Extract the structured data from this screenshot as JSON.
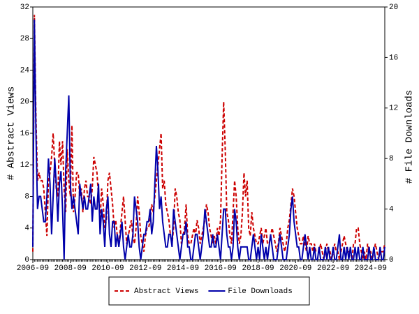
{
  "chart_data": {
    "type": "line",
    "y_label": "# Abstract Views",
    "y2_label": "# File Downloads",
    "categories": [
      "2006-09",
      null,
      null,
      null,
      null,
      null,
      null,
      null,
      null,
      null,
      null,
      null,
      null,
      null,
      null,
      null,
      null,
      null,
      null,
      null,
      null,
      null,
      null,
      null,
      "2008-09",
      null,
      null,
      null,
      null,
      null,
      null,
      null,
      null,
      null,
      null,
      null,
      null,
      null,
      null,
      null,
      null,
      null,
      null,
      null,
      null,
      null,
      null,
      null,
      "2010-09",
      null,
      null,
      null,
      null,
      null,
      null,
      null,
      null,
      null,
      null,
      null,
      null,
      null,
      null,
      null,
      null,
      null,
      null,
      null,
      null,
      null,
      null,
      null,
      "2012-09",
      null,
      null,
      null,
      null,
      null,
      null,
      null,
      null,
      null,
      null,
      null,
      null,
      null,
      null,
      null,
      null,
      null,
      null,
      null,
      null,
      null,
      null,
      null,
      "2014-09",
      null,
      null,
      null,
      null,
      null,
      null,
      null,
      null,
      null,
      null,
      null,
      null,
      null,
      null,
      null,
      null,
      null,
      null,
      null,
      null,
      null,
      null,
      null,
      "2016-09",
      null,
      null,
      null,
      null,
      null,
      null,
      null,
      null,
      null,
      null,
      null,
      null,
      null,
      null,
      null,
      null,
      null,
      null,
      null,
      null,
      null,
      null,
      null,
      "2018-09",
      null,
      null,
      null,
      null,
      null,
      null,
      null,
      null,
      null,
      null,
      null,
      null,
      null,
      null,
      null,
      null,
      null,
      null,
      null,
      null,
      null,
      null,
      null,
      "2020-09",
      null,
      null,
      null,
      null,
      null,
      null,
      null,
      null,
      null,
      null,
      null,
      null,
      null,
      null,
      null,
      null,
      null,
      null,
      null,
      null,
      null,
      null,
      null,
      "2022-09",
      null,
      null,
      null,
      null,
      null,
      null,
      null,
      null,
      null,
      null,
      null,
      null,
      null,
      null,
      null,
      null,
      null,
      null,
      null,
      null,
      null,
      null,
      null,
      "2024-09",
      null,
      null,
      null,
      null,
      null,
      null,
      null,
      null,
      null
    ],
    "series": [
      {
        "name": "Abstract Views",
        "color": "#cc0000",
        "line_style": "dashed",
        "values": [
          1,
          31,
          18,
          10,
          11,
          10,
          10,
          9,
          6,
          3,
          10,
          11,
          13,
          16,
          12,
          9,
          8,
          15,
          12,
          15,
          9,
          6,
          14,
          10,
          8,
          17,
          6,
          8,
          11,
          11,
          8,
          9,
          6,
          9,
          10,
          8,
          8,
          7,
          9,
          13,
          12,
          11,
          8,
          5,
          9,
          7,
          4,
          5,
          10,
          11,
          9,
          7,
          4,
          5,
          3,
          2,
          4,
          6,
          8,
          5,
          2,
          3,
          4,
          5,
          3,
          2,
          4,
          8,
          6,
          3,
          2,
          1,
          3,
          4,
          4,
          5,
          7,
          6,
          8,
          10,
          12,
          14,
          16,
          9,
          10,
          7,
          6,
          5,
          3,
          2,
          4,
          9,
          8,
          6,
          5,
          2,
          3,
          4,
          7,
          3,
          2,
          2,
          3,
          4,
          3,
          5,
          4,
          2,
          3,
          4,
          5,
          7,
          6,
          4,
          3,
          2,
          3,
          2,
          4,
          3,
          5,
          13,
          20,
          14,
          6,
          5,
          3,
          2,
          6,
          10,
          8,
          4,
          2,
          3,
          6,
          11,
          8,
          10,
          4,
          3,
          6,
          4,
          3,
          2,
          2,
          3,
          4,
          2,
          3,
          4,
          2,
          2,
          3,
          4,
          3,
          2,
          1,
          2,
          4,
          3,
          2,
          1,
          2,
          4,
          5,
          7,
          9,
          8,
          6,
          4,
          3,
          2,
          2,
          3,
          2,
          1,
          3,
          2,
          2,
          1,
          2,
          1,
          1,
          1,
          2,
          1,
          0,
          1,
          2,
          1,
          1,
          0,
          1,
          2,
          1,
          1,
          0,
          1,
          2,
          3,
          2,
          1,
          1,
          1,
          0,
          2,
          2,
          4,
          4,
          2,
          1,
          0,
          1,
          0,
          2,
          1,
          1,
          0,
          1,
          2,
          1,
          0,
          1,
          1,
          1,
          2
        ]
      },
      {
        "name": "File Downloads",
        "color": "#0000aa",
        "line_style": "solid",
        "axis": "y2",
        "values": [
          1,
          19,
          10,
          4,
          5,
          5,
          4,
          3,
          3,
          5,
          8,
          6,
          2,
          5,
          8,
          6,
          3,
          6,
          7,
          4,
          0,
          7,
          10,
          13,
          6,
          4,
          5,
          4,
          3,
          2,
          6,
          5,
          4,
          5,
          4,
          4,
          5,
          6,
          3,
          5,
          4,
          4,
          6,
          2,
          4,
          3,
          1,
          4,
          5,
          2,
          1,
          3,
          3,
          1,
          2,
          1,
          2,
          3,
          1,
          0,
          1,
          2,
          1,
          1,
          2,
          5,
          4,
          3,
          1,
          0,
          1,
          2,
          2,
          3,
          3,
          4,
          2,
          3,
          6,
          9,
          7,
          4,
          5,
          3,
          2,
          1,
          1,
          2,
          2,
          1,
          4,
          3,
          2,
          1,
          0,
          1,
          2,
          2,
          3,
          1,
          1,
          0,
          0,
          1,
          2,
          2,
          1,
          0,
          1,
          2,
          4,
          3,
          2,
          1,
          1,
          2,
          1,
          1,
          2,
          1,
          0,
          2,
          4,
          4,
          2,
          1,
          1,
          0,
          1,
          4,
          3,
          1,
          0,
          1,
          1,
          1,
          1,
          1,
          0,
          0,
          1,
          2,
          1,
          0,
          1,
          0,
          2,
          1,
          0,
          1,
          0,
          1,
          2,
          1,
          0,
          0,
          0,
          1,
          2,
          1,
          0,
          0,
          0,
          1,
          2,
          4,
          5,
          3,
          2,
          1,
          1,
          0,
          0,
          1,
          2,
          1,
          0,
          1,
          0,
          0,
          1,
          0,
          0,
          1,
          0,
          0,
          0,
          1,
          0,
          1,
          0,
          0,
          1,
          0,
          0,
          1,
          2,
          0,
          0,
          1,
          0,
          1,
          0,
          1,
          0,
          0,
          1,
          0,
          1,
          0,
          0,
          1,
          0,
          0,
          0,
          1,
          0,
          0,
          1,
          0,
          0,
          0,
          1,
          0,
          0,
          1
        ]
      }
    ],
    "ylim": [
      0,
      32
    ],
    "yticks": [
      0,
      4,
      8,
      12,
      16,
      20,
      24,
      28,
      32
    ],
    "y2lim": [
      0,
      20
    ],
    "y2ticks": [
      0,
      4,
      8,
      12,
      16,
      20
    ],
    "legend": "bottom"
  }
}
